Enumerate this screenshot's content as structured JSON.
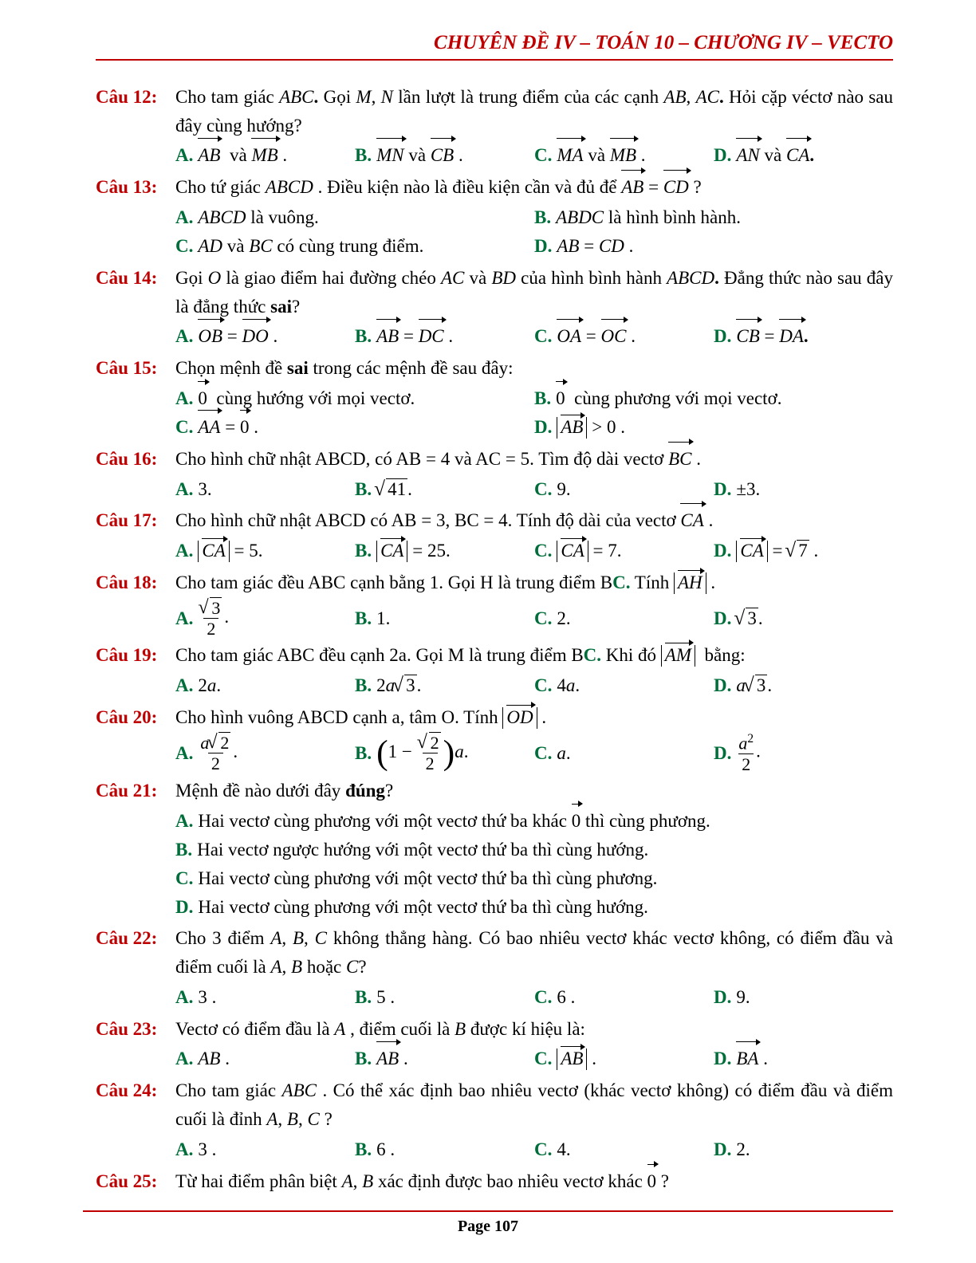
{
  "colors": {
    "accent_red": "#c00000",
    "accent_green": "#006e3a",
    "text": "#000000",
    "bg": "#ffffff"
  },
  "fonts": {
    "body_family": "Times New Roman",
    "body_size_pt": 17,
    "header_size_pt": 19
  },
  "header": "CHUYÊN ĐỀ IV – TOÁN  10 – CHƯƠNG IV – VECTO",
  "page_number": "Page 107",
  "questions": [
    {
      "num": "Câu 12:",
      "text": "Cho tam giác <i>ABC</i><b>.</b> Gọi <i>M</i>, <i>N</i> lần lượt là trung điểm của các cạnh <i>AB</i>, <i>AC</i><b>.</b> Hỏi cặp véctơ nào sau đây cùng hướng?",
      "layout": "four",
      "options": [
        "<span class='vec it'>AB</span>&nbsp; và <span class='vec it'>MB</span> .",
        "<span class='vec it'>MN</span> và <span class='vec it'>CB</span> .",
        "<span class='vec it'>MA</span> và <span class='vec it'>MB</span> .",
        "<span class='vec it'>AN</span> và <span class='vec it'>CA</span><b>.</b>"
      ]
    },
    {
      "num": "Câu 13:",
      "text": "Cho tứ giác <i>ABCD</i> . Điều kiện nào là điều kiện cần và đủ để <span class='vec it'>AB</span> = <span class='vec it'>CD</span> ?",
      "layout": "two",
      "options": [
        "<i>ABCD</i> là vuông.",
        "<i>ABDC</i> là hình bình hành.",
        "<i>AD</i> và <i>BC</i> có cùng trung điểm.",
        "<i>AB</i> = <i>CD</i> ."
      ]
    },
    {
      "num": "Câu 14:",
      "text": "Gọi <i>O</i> là giao điểm hai đường chéo <i>AC</i> và <i>BD</i> của hình bình hành <i>ABCD</i><b>.</b> Đẳng thức nào sau đây là đẳng thức <b>sai</b>?",
      "layout": "four",
      "options": [
        "<span class='vec it'>OB</span> = <span class='vec it'>DO</span> .",
        "<span class='vec it'>AB</span> = <span class='vec it'>DC</span> .",
        "<span class='vec it'>OA</span> = <span class='vec it'>OC</span> .",
        "<span class='vec it'>CB</span> = <span class='vec it'>DA</span><b>.</b>"
      ]
    },
    {
      "num": "Câu 15:",
      "text": "Chọn mệnh đề <b>sai</b> trong các mệnh đề sau đây:",
      "layout": "two",
      "options": [
        "<span class='vec'>0</span>&nbsp; cùng hướng với mọi vectơ.",
        "<span class='vec'>0</span>&nbsp; cùng phương với mọi vectơ.",
        "<span class='vec it'>AA</span> = <span class='vec'>0</span> .",
        "<span class='abs'><span class='vec it'>AB</span></span> &gt; 0 ."
      ]
    },
    {
      "num": "Câu 16:",
      "text": "Cho hình chữ nhật ABCD, có AB = 4 và AC = 5. Tìm độ dài vectơ <span class='vec it'>BC</span> .",
      "layout": "four",
      "options": [
        "3.",
        "<span class='sqrt'><span class='radicand'>41</span></span>.",
        "9.",
        "±3."
      ]
    },
    {
      "num": "Câu 17:",
      "text": "Cho hình chữ nhật ABCD có AB = 3, BC = 4. Tính độ dài của vectơ <span class='vec it'>CA</span> .",
      "layout": "four",
      "options": [
        "<span class='abs'><span class='vec it'>CA</span></span> = 5.",
        "<span class='abs'><span class='vec it'>CA</span></span> = 25.",
        "<span class='abs'><span class='vec it'>CA</span></span> = 7.",
        "<span class='abs'><span class='vec it'>CA</span></span> = <span class='sqrt'><span class='radicand'>7</span></span> ."
      ]
    },
    {
      "num": "Câu 18:",
      "text": "Cho tam giác đều ABC cạnh bằng 1. Gọi H là trung điểm B<span class='green bold'>C.</span> Tính <span class='abs'><span class='vec it'>AH</span></span> .",
      "layout": "four",
      "options": [
        "<span class='frac'><span class='num'><span class='sqrt'><span class='radicand'>3</span></span></span><span class='den'>2</span></span>.",
        "1.",
        "2.",
        "<span class='sqrt'><span class='radicand'>3</span></span>."
      ]
    },
    {
      "num": "Câu 19:",
      "text": "Cho tam giác ABC đều cạnh 2a. Gọi M là trung điểm B<span class='green bold'>C.</span> Khi đó <span class='abs'><span class='vec it'>AM</span></span>&nbsp; bằng:",
      "layout": "four",
      "options": [
        "2<i>a</i>.",
        "2<i>a</i><span class='sqrt'><span class='radicand'>3</span></span>.",
        "4<i>a</i>.",
        "<i>a</i><span class='sqrt'><span class='radicand'>3</span></span>."
      ]
    },
    {
      "num": "Câu 20:",
      "text": "Cho hình vuông ABCD cạnh a, tâm O. Tính <span class='abs'><span class='vec it'>OD</span></span> .",
      "layout": "four",
      "options": [
        "<span class='frac'><span class='num'><i>a</i><span class='sqrt'><span class='radicand'>2</span></span></span><span class='den'>2</span></span>.",
        "<span class='lparen'>(</span>1 − <span class='frac'><span class='num'><span class='sqrt'><span class='radicand'>2</span></span></span><span class='den'>2</span></span><span class='rparen'>)</span><i>a</i>.",
        "<i>a</i>.",
        "<span class='frac'><span class='num'><i>a</i><sup>2</sup></span><span class='den'>2</span></span>."
      ]
    },
    {
      "num": "Câu 21:",
      "text": "Mệnh đề nào dưới đây <b>đúng</b>?",
      "layout": "one",
      "options": [
        "Hai vectơ cùng phương với một vectơ thứ ba khác <span class='vec'>0</span> thì cùng phương.",
        "Hai vectơ ngược hướng với một vectơ thứ ba thì cùng hướng.",
        "Hai vectơ cùng phương với một vectơ thứ ba thì cùng phương.",
        "Hai vectơ cùng phương với một vectơ thứ ba thì cùng hướng."
      ]
    },
    {
      "num": "Câu 22:",
      "text": "Cho 3 điểm <i>A</i>, <i>B</i>, <i>C</i> không thẳng hàng. Có bao nhiêu vectơ khác vectơ không, có điểm đầu và điểm cuối là <i>A</i>, <i>B</i> hoặc <i>C</i>?",
      "layout": "four",
      "options": [
        "3 .",
        "5 .",
        "6 .",
        "9."
      ]
    },
    {
      "num": "Câu 23:",
      "text": "Vectơ có điểm đầu là <i>A</i> , điểm cuối là <i>B</i> được kí hiệu là:",
      "layout": "four",
      "options": [
        "<i>AB</i> .",
        "<span class='vec it'>AB</span> .",
        "<span class='abs'><span class='vec it'>AB</span></span> .",
        "<span class='vec it'>BA</span> ."
      ]
    },
    {
      "num": "Câu 24:",
      "text": "Cho tam giác <i>ABC</i> . Có thể xác định bao nhiêu vectơ (khác vectơ không) có điểm đầu và điểm cuối là đỉnh <i>A</i>, <i>B</i>, <i>C</i> ?",
      "layout": "four",
      "options": [
        "3 .",
        "6 .",
        "4.",
        "2."
      ]
    },
    {
      "num": "Câu 25:",
      "text": "Từ hai điểm phân biệt <i>A</i>, <i>B</i> xác định được bao nhiêu vectơ khác <span class='vec'>0</span> ?",
      "layout": "none",
      "options": []
    }
  ]
}
